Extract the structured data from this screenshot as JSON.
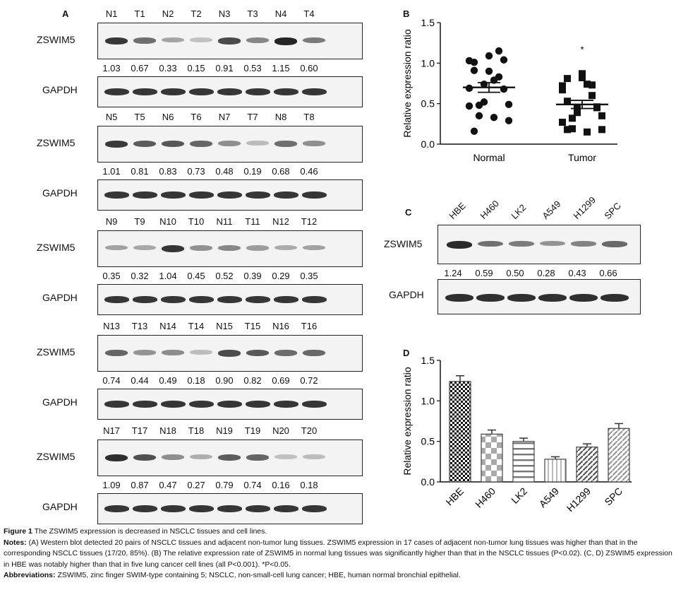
{
  "panel_a": {
    "letter": "A",
    "protein_label": "ZSWIM5",
    "control_label": "GAPDH",
    "blots": [
      {
        "lanes": [
          "N1",
          "T1",
          "N2",
          "T2",
          "N3",
          "T3",
          "N4",
          "T4"
        ],
        "values": [
          "1.03",
          "0.67",
          "0.33",
          "0.15",
          "0.91",
          "0.53",
          "1.15",
          "0.60"
        ]
      },
      {
        "lanes": [
          "N5",
          "T5",
          "N6",
          "T6",
          "N7",
          "T7",
          "N8",
          "T8"
        ],
        "values": [
          "1.01",
          "0.81",
          "0.83",
          "0.73",
          "0.48",
          "0.19",
          "0.68",
          "0.46"
        ]
      },
      {
        "lanes": [
          "N9",
          "T9",
          "N10",
          "T10",
          "N11",
          "T11",
          "N12",
          "T12"
        ],
        "values": [
          "0.35",
          "0.32",
          "1.04",
          "0.45",
          "0.52",
          "0.39",
          "0.29",
          "0.35"
        ]
      },
      {
        "lanes": [
          "N13",
          "T13",
          "N14",
          "T14",
          "N15",
          "T15",
          "N16",
          "T16"
        ],
        "values": [
          "0.74",
          "0.44",
          "0.49",
          "0.18",
          "0.90",
          "0.82",
          "0.69",
          "0.72"
        ]
      },
      {
        "lanes": [
          "N17",
          "T17",
          "N18",
          "T18",
          "N19",
          "T19",
          "N20",
          "T20"
        ],
        "values": [
          "1.09",
          "0.87",
          "0.47",
          "0.27",
          "0.79",
          "0.74",
          "0.16",
          "0.18"
        ]
      }
    ]
  },
  "panel_c": {
    "letter": "C",
    "protein_label": "ZSWIM5",
    "control_label": "GAPDH",
    "lanes": [
      "HBE",
      "H460",
      "LK2",
      "A549",
      "H1299",
      "SPC"
    ],
    "values": [
      "1.24",
      "0.59",
      "0.50",
      "0.28",
      "0.43",
      "0.66"
    ]
  },
  "chart_data": [
    {
      "panel": "B",
      "type": "scatter",
      "ylabel": "Relative expression ratio",
      "ylim": [
        0,
        1.5
      ],
      "yticks": [
        "0.0",
        "0.5",
        "1.0",
        "1.5"
      ],
      "categories": [
        "Normal",
        "Tumor"
      ],
      "annotation": "*",
      "series": [
        {
          "name": "Normal",
          "marker": "circle",
          "mean": 0.7,
          "sem": 0.06,
          "values": [
            1.03,
            1.01,
            0.35,
            0.74,
            1.09,
            0.33,
            0.83,
            1.04,
            0.49,
            0.47,
            0.91,
            0.48,
            0.52,
            0.9,
            0.79,
            1.15,
            0.68,
            0.29,
            0.69,
            0.16
          ]
        },
        {
          "name": "Tumor",
          "marker": "square",
          "mean": 0.49,
          "sem": 0.05,
          "values": [
            0.67,
            0.81,
            0.32,
            0.44,
            0.87,
            0.15,
            0.73,
            0.45,
            0.18,
            0.27,
            0.53,
            0.19,
            0.39,
            0.82,
            0.74,
            0.6,
            0.46,
            0.35,
            0.72,
            0.18
          ]
        }
      ]
    },
    {
      "panel": "D",
      "type": "bar",
      "ylabel": "Relative expression ratio",
      "ylim": [
        0,
        1.5
      ],
      "yticks": [
        "0.0",
        "0.5",
        "1.0",
        "1.5"
      ],
      "categories": [
        "HBE",
        "H460",
        "LK2",
        "A549",
        "H1299",
        "SPC"
      ],
      "values": [
        1.24,
        0.59,
        0.5,
        0.28,
        0.43,
        0.66
      ],
      "errors": [
        0.07,
        0.05,
        0.04,
        0.03,
        0.04,
        0.06
      ],
      "patterns": [
        "checker",
        "bigchecker",
        "hstripe",
        "vstripe",
        "diag",
        "diag2"
      ]
    }
  ],
  "caption": {
    "title_bold": "Figure 1",
    "title_text": "The ZSWIM5 expression is decreased in NSCLC tissues and cell lines.",
    "notes_label": "Notes:",
    "notes_text": "(A) Western blot detected 20 pairs of NSCLC tissues and adjacent non-tumor lung tissues. ZSWIM5 expression in 17 cases of adjacent non-tumor lung tissues was higher than that in the corresponding NSCLC tissues (17/20, 85%). (B) The relative expression rate of ZSWIM5 in normal lung tissues was significantly higher than that in the NSCLC tissues (P<0.02). (C, D) ZSWIM5 expression in HBE was notably higher than that in five lung cancer cell lines (all P<0.001). *P<0.05.",
    "abbr_label": "Abbreviations:",
    "abbr_text": "ZSWIM5, zinc finger SWIM-type containing 5; NSCLC, non-small-cell lung cancer; HBE, human normal bronchial epithelial."
  }
}
